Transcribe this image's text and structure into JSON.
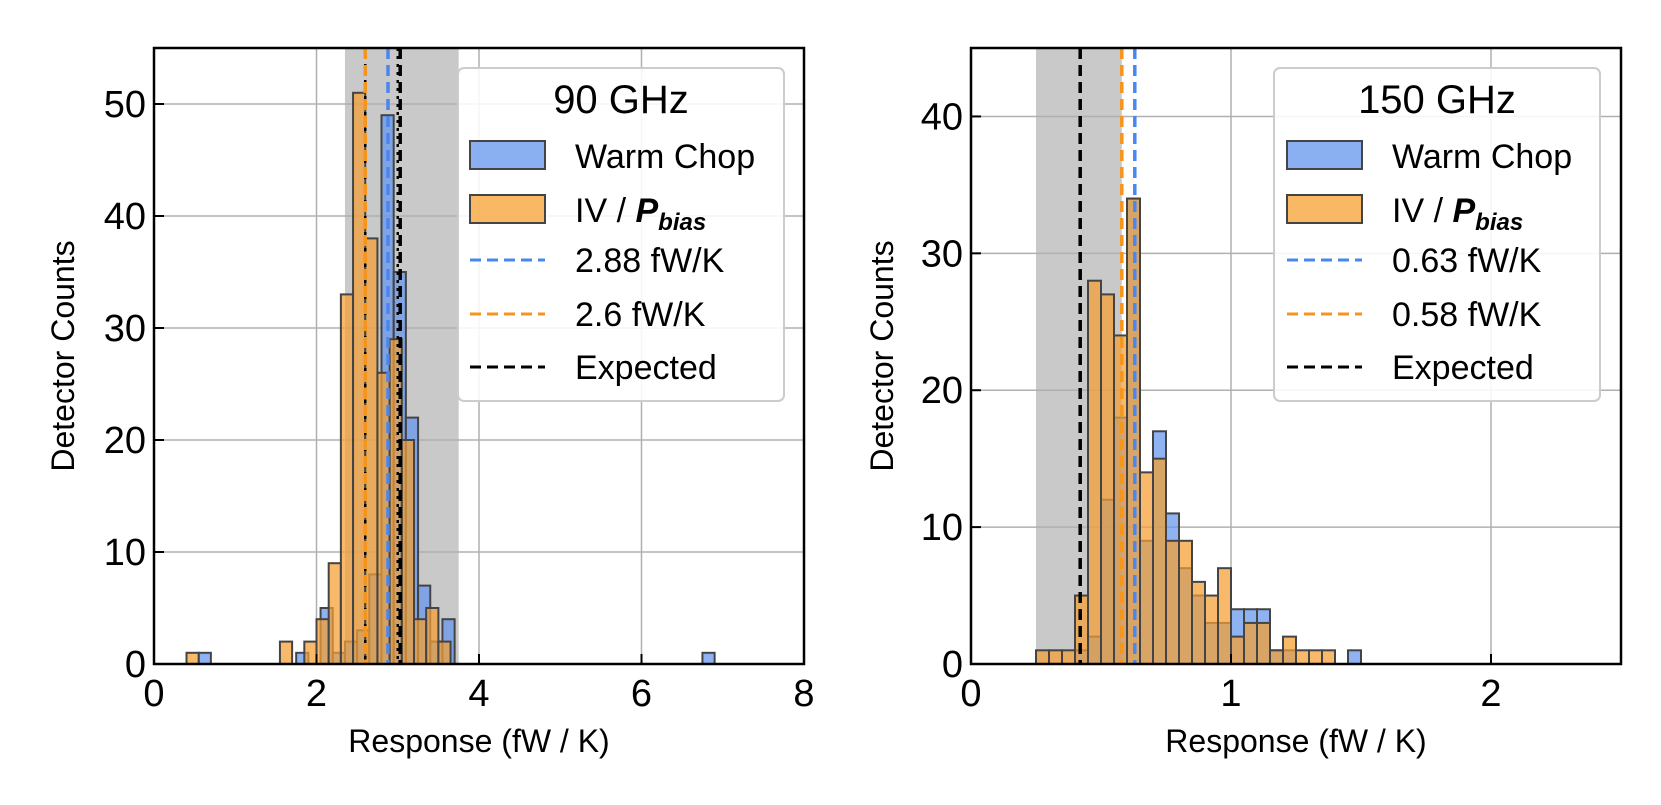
{
  "colors": {
    "warm_fill": "#6495ED",
    "iv_fill": "#F5A030",
    "warm_line": "#4A86F0",
    "iv_line": "#F5951E",
    "expected_line": "#000000",
    "band": "#BFBFBF",
    "grid": "#B0B0B0",
    "edge": "#444444"
  },
  "chart_data": [
    {
      "type": "bar",
      "subtype": "histogram",
      "title": "90 GHz",
      "xlabel": "Response (fW / K)",
      "ylabel": "Detector Counts",
      "xlim": [
        0,
        8
      ],
      "ylim": [
        0,
        55
      ],
      "xticks": [
        0,
        2,
        4,
        6,
        8
      ],
      "yticks": [
        0,
        10,
        20,
        30,
        40,
        50
      ],
      "grid": true,
      "legend_position": "top-right",
      "expected_band": [
        2.35,
        3.75
      ],
      "bin_width": 0.15,
      "series": [
        {
          "name": "Warm Chop",
          "bins": [
            {
              "x": 0.55,
              "count": 1
            },
            {
              "x": 1.75,
              "count": 1
            },
            {
              "x": 2.05,
              "count": 5
            },
            {
              "x": 2.2,
              "count": 1
            },
            {
              "x": 2.35,
              "count": 2
            },
            {
              "x": 2.5,
              "count": 3
            },
            {
              "x": 2.65,
              "count": 8
            },
            {
              "x": 2.8,
              "count": 49
            },
            {
              "x": 2.95,
              "count": 35
            },
            {
              "x": 3.1,
              "count": 22
            },
            {
              "x": 3.25,
              "count": 7
            },
            {
              "x": 3.4,
              "count": 2
            },
            {
              "x": 3.55,
              "count": 4
            },
            {
              "x": 6.75,
              "count": 1
            }
          ]
        },
        {
          "name": "IV / P_bias",
          "bins": [
            {
              "x": 0.4,
              "count": 1
            },
            {
              "x": 1.55,
              "count": 2
            },
            {
              "x": 1.85,
              "count": 2
            },
            {
              "x": 2.0,
              "count": 4
            },
            {
              "x": 2.15,
              "count": 9
            },
            {
              "x": 2.3,
              "count": 33
            },
            {
              "x": 2.45,
              "count": 51
            },
            {
              "x": 2.6,
              "count": 38
            },
            {
              "x": 2.75,
              "count": 26
            },
            {
              "x": 2.9,
              "count": 29
            },
            {
              "x": 3.05,
              "count": 20
            },
            {
              "x": 3.2,
              "count": 4
            },
            {
              "x": 3.35,
              "count": 5
            },
            {
              "x": 3.5,
              "count": 2
            }
          ]
        }
      ],
      "vlines": [
        {
          "name": "2.88 fW/K",
          "x": 2.88,
          "style": "warm"
        },
        {
          "name": "2.6 fW/K",
          "x": 2.6,
          "style": "iv"
        },
        {
          "name": "Expected",
          "x": 3.03,
          "style": "expected"
        }
      ],
      "dotted_lines": [
        2.6,
        3.0
      ]
    },
    {
      "type": "bar",
      "subtype": "histogram",
      "title": "150 GHz",
      "xlabel": "Response (fW / K)",
      "ylabel": "Detector Counts",
      "xlim": [
        0,
        2.5
      ],
      "ylim": [
        0,
        45
      ],
      "xticks": [
        0,
        1,
        2
      ],
      "yticks": [
        0,
        10,
        20,
        30,
        40
      ],
      "grid": true,
      "legend_position": "top-right",
      "expected_band": [
        0.25,
        0.58
      ],
      "bin_width": 0.05,
      "series": [
        {
          "name": "Warm Chop",
          "bins": [
            {
              "x": 0.4,
              "count": 1
            },
            {
              "x": 0.45,
              "count": 2
            },
            {
              "x": 0.5,
              "count": 12
            },
            {
              "x": 0.55,
              "count": 18
            },
            {
              "x": 0.6,
              "count": 34
            },
            {
              "x": 0.65,
              "count": 9
            },
            {
              "x": 0.7,
              "count": 17
            },
            {
              "x": 0.75,
              "count": 11
            },
            {
              "x": 0.8,
              "count": 7
            },
            {
              "x": 0.85,
              "count": 5
            },
            {
              "x": 0.9,
              "count": 3
            },
            {
              "x": 0.95,
              "count": 3
            },
            {
              "x": 1.0,
              "count": 4
            },
            {
              "x": 1.05,
              "count": 4
            },
            {
              "x": 1.1,
              "count": 4
            },
            {
              "x": 1.15,
              "count": 1
            },
            {
              "x": 1.2,
              "count": 1
            },
            {
              "x": 1.45,
              "count": 1
            }
          ]
        },
        {
          "name": "IV / P_bias",
          "bins": [
            {
              "x": 0.25,
              "count": 1
            },
            {
              "x": 0.3,
              "count": 1
            },
            {
              "x": 0.35,
              "count": 1
            },
            {
              "x": 0.4,
              "count": 5
            },
            {
              "x": 0.45,
              "count": 28
            },
            {
              "x": 0.5,
              "count": 27
            },
            {
              "x": 0.55,
              "count": 24
            },
            {
              "x": 0.6,
              "count": 34
            },
            {
              "x": 0.65,
              "count": 14
            },
            {
              "x": 0.7,
              "count": 15
            },
            {
              "x": 0.75,
              "count": 9
            },
            {
              "x": 0.8,
              "count": 9
            },
            {
              "x": 0.85,
              "count": 6
            },
            {
              "x": 0.9,
              "count": 5
            },
            {
              "x": 0.95,
              "count": 7
            },
            {
              "x": 1.0,
              "count": 2
            },
            {
              "x": 1.05,
              "count": 3
            },
            {
              "x": 1.1,
              "count": 3
            },
            {
              "x": 1.15,
              "count": 1
            },
            {
              "x": 1.2,
              "count": 2
            },
            {
              "x": 1.25,
              "count": 1
            },
            {
              "x": 1.3,
              "count": 1
            },
            {
              "x": 1.35,
              "count": 1
            }
          ]
        }
      ],
      "vlines": [
        {
          "name": "0.63 fW/K",
          "x": 0.63,
          "style": "warm"
        },
        {
          "name": "0.58 fW/K",
          "x": 0.58,
          "style": "iv"
        },
        {
          "name": "Expected",
          "x": 0.42,
          "style": "expected"
        }
      ],
      "dotted_lines": []
    }
  ],
  "legend": [
    {
      "title": "90 GHz",
      "warm_label": "Warm Chop",
      "iv_prefix": "IV / ",
      "iv_symbol": "P",
      "iv_subscript": "bias",
      "warm_line_label": "2.88 fW/K",
      "iv_line_label": "2.6 fW/K",
      "expected_label": "Expected"
    },
    {
      "title": "150 GHz",
      "warm_label": "Warm Chop",
      "iv_prefix": "IV / ",
      "iv_symbol": "P",
      "iv_subscript": "bias",
      "warm_line_label": "0.63 fW/K",
      "iv_line_label": "0.58 fW/K",
      "expected_label": "Expected"
    }
  ]
}
